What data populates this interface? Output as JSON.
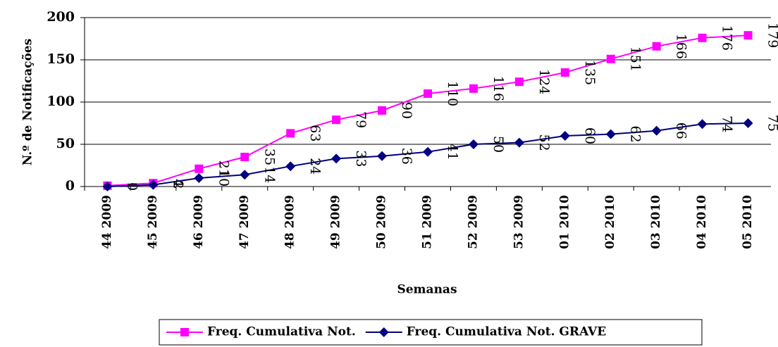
{
  "chart_data": {
    "type": "line",
    "y_label": "N.º de Notificações",
    "x_label": "Semanas",
    "categories": [
      "44 2009",
      "45 2009",
      "46 2009",
      "47 2009",
      "48 2009",
      "49 2009",
      "50 2009",
      "51 2009",
      "52 2009",
      "53 2009",
      "01 2010",
      "02 2010",
      "03 2010",
      "04 2010",
      "05 2010"
    ],
    "series": [
      {
        "name": "Freq. Cumulativa Not.",
        "color": "#ff00ff",
        "marker": "square",
        "values": [
          1,
          4,
          21,
          35,
          63,
          79,
          90,
          110,
          116,
          124,
          135,
          151,
          166,
          176,
          179
        ]
      },
      {
        "name": "Freq. Cumulativa Not. GRAVE",
        "color": "#000080",
        "marker": "diamond",
        "values": [
          0,
          2,
          10,
          14,
          24,
          33,
          36,
          41,
          50,
          52,
          60,
          62,
          66,
          74,
          75
        ]
      }
    ],
    "ylim": [
      0,
      200
    ],
    "yticks": [
      0,
      50,
      100,
      150,
      200
    ],
    "grid": true,
    "legend": "bottom"
  }
}
